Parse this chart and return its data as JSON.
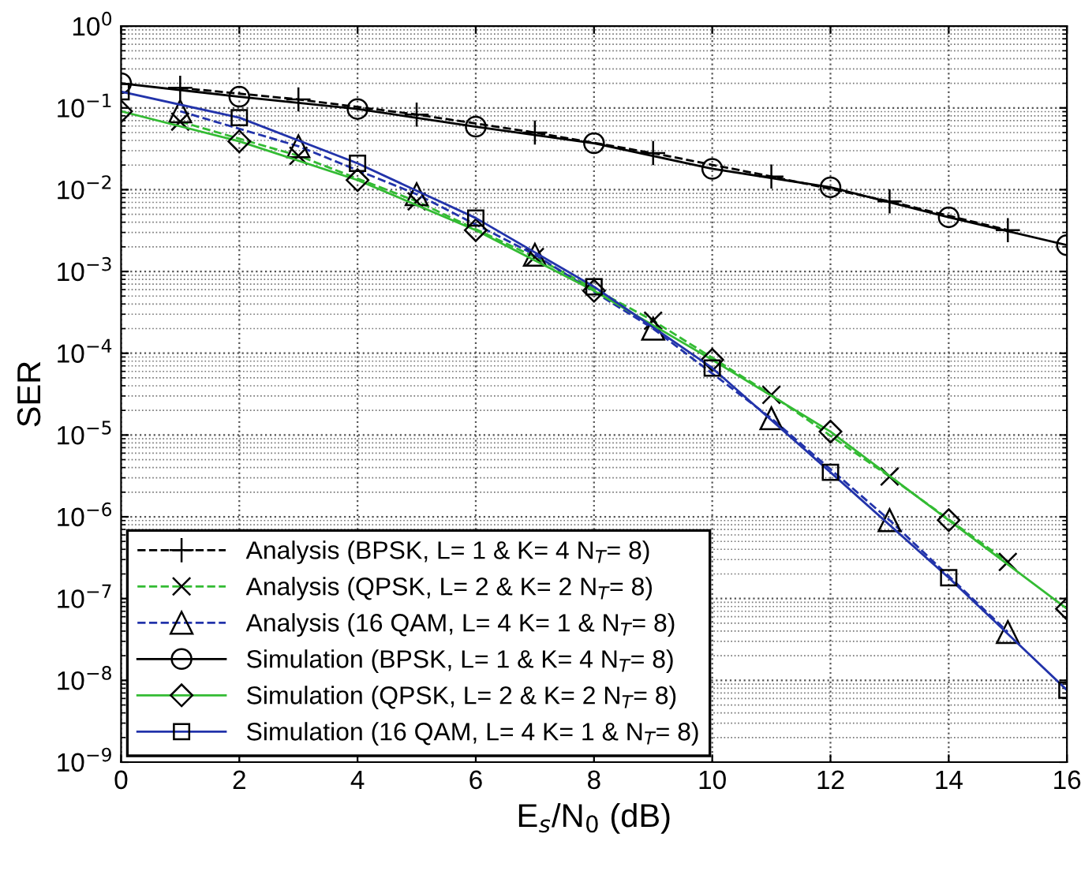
{
  "chart_data": {
    "type": "line",
    "xlabel": "E$_{s}$/N$_{0}$ (dB)",
    "ylabel": "SER",
    "log": "y",
    "grid": true,
    "legend": "bottom left",
    "xlim": [
      0,
      16
    ],
    "xticks": [
      0,
      2,
      4,
      6,
      8,
      10,
      12,
      14,
      16
    ],
    "ylim": [
      1e-09,
      1
    ],
    "yticks": [
      {
        "value": 1e-09,
        "label": "10$^{−9}$"
      },
      {
        "value": 1e-08,
        "label": "10$^{−8}$"
      },
      {
        "value": 1e-07,
        "label": "10$^{−7}$"
      },
      {
        "value": 1e-06,
        "label": "10$^{−6}$"
      },
      {
        "value": 1e-05,
        "label": "10$^{−5}$"
      },
      {
        "value": 0.0001,
        "label": "10$^{−4}$"
      },
      {
        "value": 0.001,
        "label": "10$^{−3}$"
      },
      {
        "value": 0.01,
        "label": "10$^{−2}$"
      },
      {
        "value": 0.1,
        "label": "10$^{−1}$"
      },
      {
        "value": 1,
        "label": "10$^{0}$"
      }
    ],
    "series": [
      {
        "name": "Analysis (BPSK, L= 1 & K= 4 N$_{T}$= 8)",
        "color": "#000000",
        "marker": "cross",
        "line_style": "dashed",
        "x": [
          1,
          3,
          5,
          7,
          9,
          11,
          13,
          15
        ],
        "values": [
          0.176,
          0.127,
          0.083,
          0.05,
          0.028,
          0.0145,
          0.0072,
          0.0032
        ]
      },
      {
        "name": "Analysis (QPSK, L= 2 & K= 2 N$_{T}$= 8)",
        "color": "#33bb33",
        "marker": "x",
        "line_style": "dashed",
        "x": [
          1,
          3,
          5,
          7,
          9,
          11,
          13,
          15
        ],
        "values": [
          0.068,
          0.026,
          0.0072,
          0.0015,
          0.00025,
          3.1e-05,
          3.1e-06,
          2.8e-07
        ]
      },
      {
        "name": "Analysis (16 QAM, L= 4 K= 1 & N$_{T}$= 8)",
        "color": "#2233aa",
        "marker": "triangle",
        "line_style": "dashed",
        "x": [
          1,
          3,
          5,
          7,
          9,
          11,
          13,
          15
        ],
        "values": [
          0.091,
          0.034,
          0.0088,
          0.0016,
          0.0002,
          1.6e-05,
          9.1e-07,
          3.9e-08
        ]
      },
      {
        "name": "Simulation (BPSK, L= 1 & K= 4 N$_{T}$= 8)",
        "color": "#000000",
        "marker": "circle",
        "line_style": "solid",
        "x": [
          0,
          2,
          4,
          6,
          8,
          10,
          12,
          14,
          16
        ],
        "values": [
          0.2,
          0.137,
          0.097,
          0.059,
          0.037,
          0.018,
          0.0107,
          0.0046,
          0.0021
        ]
      },
      {
        "name": "Simulation (QPSK, L= 2 & K= 2 N$_{T}$= 8)",
        "color": "#33bb33",
        "marker": "diamond",
        "line_style": "solid",
        "x": [
          0,
          2,
          4,
          6,
          8,
          10,
          12,
          14,
          16
        ],
        "values": [
          0.091,
          0.039,
          0.0131,
          0.0032,
          0.00058,
          8.3e-05,
          1.1e-05,
          9.1e-07,
          7.5e-08
        ]
      },
      {
        "name": "Simulation (16 QAM, L= 4 K= 1 & N$_{T}$= 8)",
        "color": "#2233aa",
        "marker": "square",
        "line_style": "solid",
        "x": [
          0,
          2,
          4,
          6,
          8,
          10,
          12,
          14,
          16
        ],
        "values": [
          0.158,
          0.076,
          0.021,
          0.0045,
          0.00065,
          6.6e-05,
          3.5e-06,
          1.8e-07,
          7.6e-09
        ]
      }
    ]
  }
}
